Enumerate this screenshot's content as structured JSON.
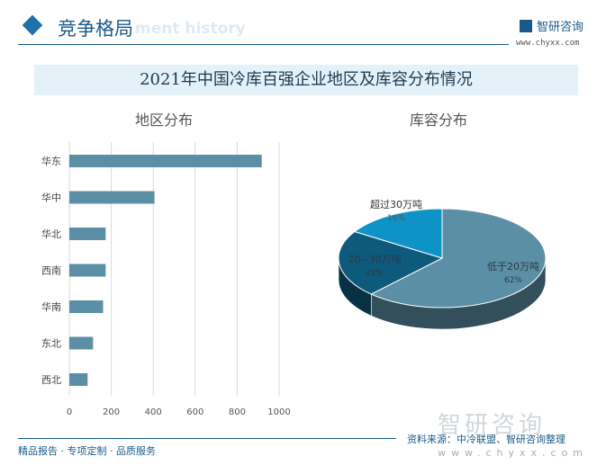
{
  "header": {
    "section_title": "竞争格局",
    "ghost_text": "ment history",
    "logo_text": "智研咨询",
    "logo_url": "www.chyxx.com"
  },
  "title": "2021年中国冷库百强企业地区及库容分布情况",
  "footer": {
    "tagline": "精品报告 · 专项定制 · 品质服务",
    "source": "资料来源：中冷联盟、智研咨询整理",
    "url": "www.chyxx.com",
    "logo_watermark": "智研咨询"
  },
  "chart_data": [
    {
      "type": "bar",
      "orientation": "horizontal",
      "title": "地区分布",
      "categories": [
        "华东",
        "华中",
        "华北",
        "西南",
        "华南",
        "东北",
        "西北"
      ],
      "values": [
        917,
        406,
        173,
        173,
        161,
        113,
        87
      ],
      "xlim": [
        0,
        1000
      ],
      "xticks": [
        "0",
        "200",
        "400",
        "600",
        "800",
        "1000"
      ],
      "grid": true,
      "color": "#5b8fa6"
    },
    {
      "type": "pie",
      "style": "3d",
      "title": "库容分布",
      "slices": [
        {
          "label": "低于20万吨",
          "value": 62,
          "pct": "62%",
          "color": "#5b8fa6"
        },
        {
          "label": "20~30万吨",
          "value": 22,
          "pct": "22%",
          "color": "#0e5a7c"
        },
        {
          "label": "超过30万吨",
          "value": 16,
          "pct": "16%",
          "color": "#0e93c7"
        }
      ]
    }
  ]
}
